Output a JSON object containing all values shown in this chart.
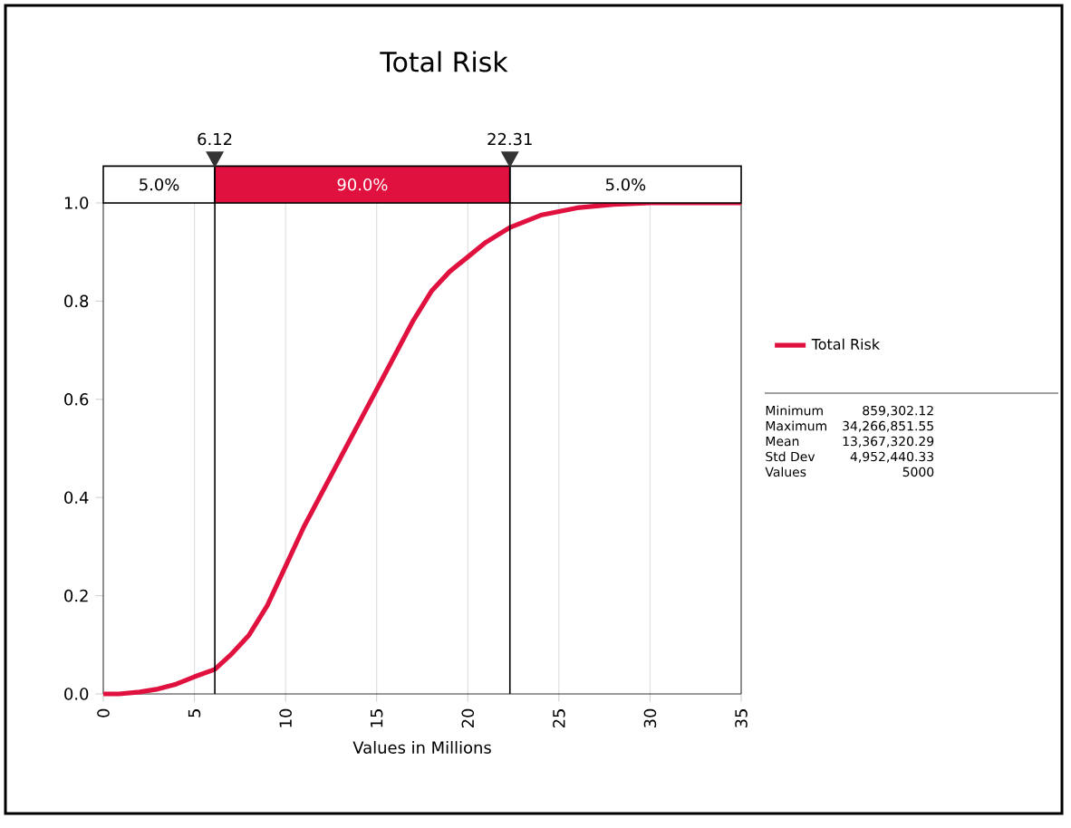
{
  "chart_data": {
    "type": "line",
    "title": "Total Risk",
    "xlabel": "Values in Millions",
    "x": [
      0,
      0.86,
      2,
      3,
      4,
      5,
      6.12,
      7,
      8,
      9,
      10,
      11,
      12,
      13,
      14,
      15,
      16,
      17,
      18,
      19,
      20,
      21,
      22.31,
      24,
      26,
      28,
      30,
      32,
      35
    ],
    "series": [
      {
        "name": "Total Risk",
        "color": "#e0103f",
        "values": [
          0,
          0,
          0.004,
          0.01,
          0.02,
          0.035,
          0.05,
          0.08,
          0.12,
          0.18,
          0.26,
          0.34,
          0.41,
          0.48,
          0.55,
          0.62,
          0.69,
          0.76,
          0.82,
          0.86,
          0.89,
          0.92,
          0.95,
          0.975,
          0.99,
          0.997,
          1.0,
          1.0,
          1.0
        ]
      }
    ],
    "xlim": [
      0,
      35
    ],
    "ylim": [
      0,
      1
    ],
    "xticks": [
      0,
      5,
      10,
      15,
      20,
      25,
      30,
      35
    ],
    "yticks": [
      {
        "value": 0,
        "label": "0.0"
      },
      {
        "value": 0.2,
        "label": "0.2"
      },
      {
        "value": 0.4,
        "label": "0.4"
      },
      {
        "value": 0.6,
        "label": "0.6"
      },
      {
        "value": 0.8,
        "label": "0.8"
      },
      {
        "value": 1,
        "label": "1.0"
      }
    ],
    "ref_lines": [
      {
        "axis": "x",
        "value": 6.12,
        "label": "6.12"
      },
      {
        "axis": "x",
        "value": 22.31,
        "label": "22.31"
      }
    ],
    "annotations": [
      "5.0%",
      "90.0%",
      "5.0%",
      "Minimum",
      "859,302.12",
      "Maximum",
      "34,266,851.55",
      "Mean",
      "13,367,320.29",
      "Std Dev",
      "4,952,440.33",
      "Values",
      "5000"
    ],
    "grid": "x",
    "legend": "right",
    "marker": "none",
    "line_style": "solid"
  }
}
